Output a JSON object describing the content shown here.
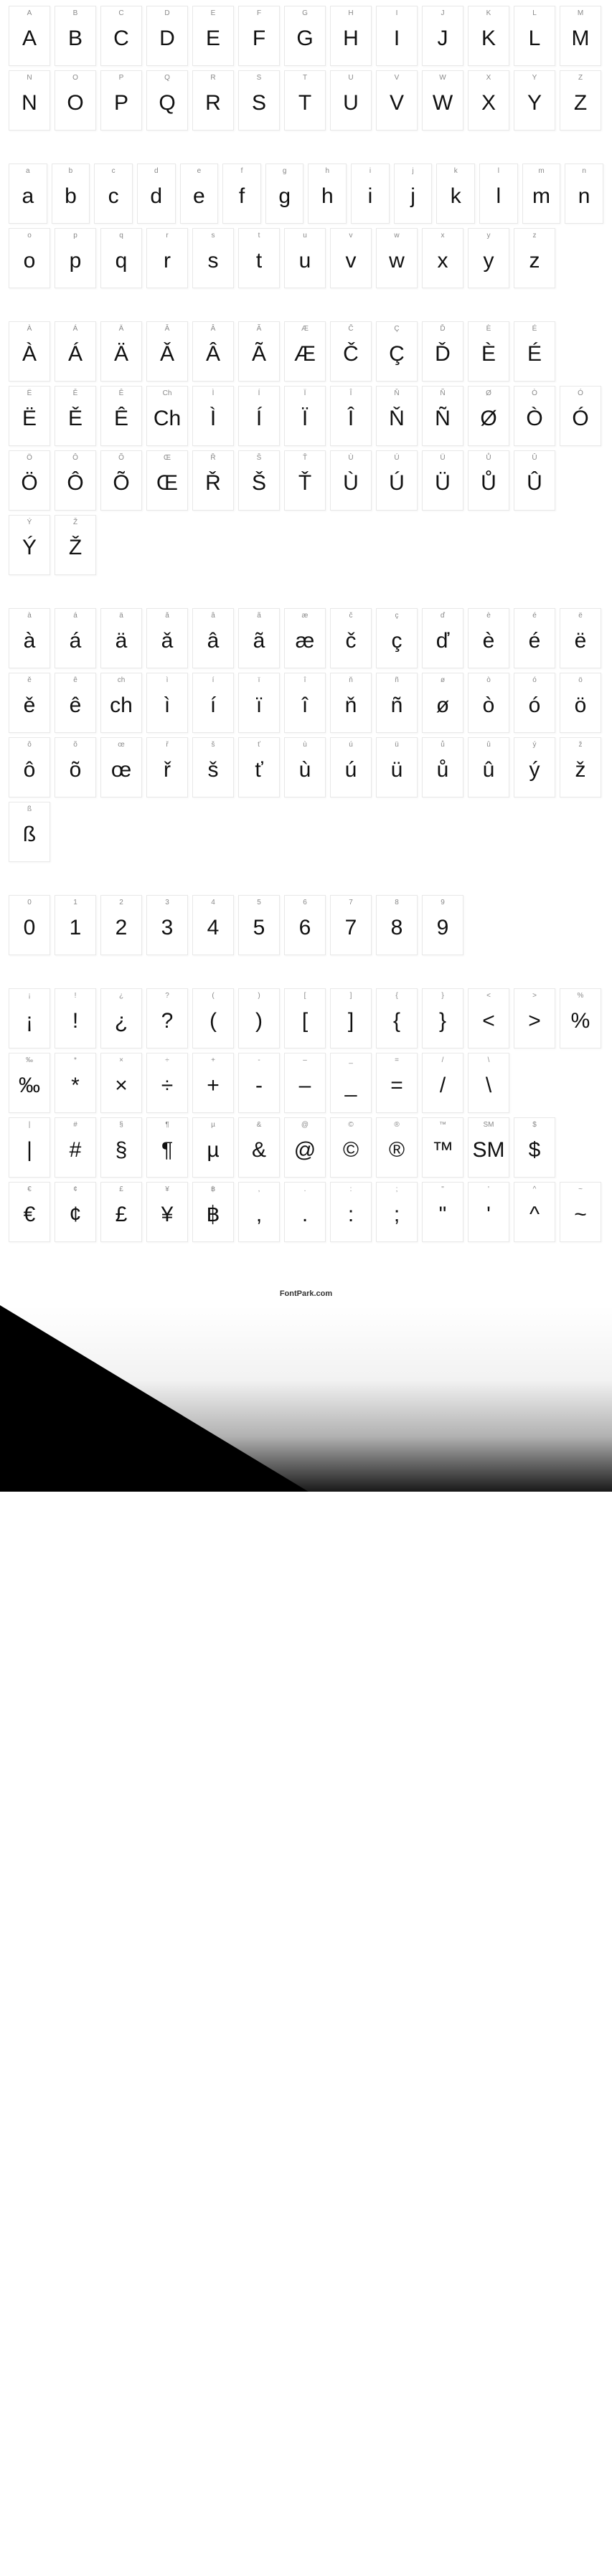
{
  "footer": "FontPark.com",
  "sections": [
    {
      "rows": [
        [
          {
            "label": "A",
            "glyph": "A"
          },
          {
            "label": "B",
            "glyph": "B"
          },
          {
            "label": "C",
            "glyph": "C"
          },
          {
            "label": "D",
            "glyph": "D"
          },
          {
            "label": "E",
            "glyph": "E"
          },
          {
            "label": "F",
            "glyph": "F"
          },
          {
            "label": "G",
            "glyph": "G"
          },
          {
            "label": "H",
            "glyph": "H"
          },
          {
            "label": "I",
            "glyph": "I"
          },
          {
            "label": "J",
            "glyph": "J"
          },
          {
            "label": "K",
            "glyph": "K"
          },
          {
            "label": "L",
            "glyph": "L"
          },
          {
            "label": "M",
            "glyph": "M"
          }
        ],
        [
          {
            "label": "N",
            "glyph": "N"
          },
          {
            "label": "O",
            "glyph": "O"
          },
          {
            "label": "P",
            "glyph": "P"
          },
          {
            "label": "Q",
            "glyph": "Q"
          },
          {
            "label": "R",
            "glyph": "R"
          },
          {
            "label": "S",
            "glyph": "S"
          },
          {
            "label": "T",
            "glyph": "T"
          },
          {
            "label": "U",
            "glyph": "U"
          },
          {
            "label": "V",
            "glyph": "V"
          },
          {
            "label": "W",
            "glyph": "W"
          },
          {
            "label": "X",
            "glyph": "X"
          },
          {
            "label": "Y",
            "glyph": "Y"
          },
          {
            "label": "Z",
            "glyph": "Z"
          }
        ]
      ]
    },
    {
      "rows": [
        [
          {
            "label": "a",
            "glyph": "a"
          },
          {
            "label": "b",
            "glyph": "b"
          },
          {
            "label": "c",
            "glyph": "c"
          },
          {
            "label": "d",
            "glyph": "d"
          },
          {
            "label": "e",
            "glyph": "e"
          },
          {
            "label": "f",
            "glyph": "f"
          },
          {
            "label": "g",
            "glyph": "g"
          },
          {
            "label": "h",
            "glyph": "h"
          },
          {
            "label": "i",
            "glyph": "i"
          },
          {
            "label": "j",
            "glyph": "j"
          },
          {
            "label": "k",
            "glyph": "k"
          },
          {
            "label": "l",
            "glyph": "l"
          },
          {
            "label": "m",
            "glyph": "m"
          },
          {
            "label": "n",
            "glyph": "n"
          }
        ],
        [
          {
            "label": "o",
            "glyph": "o"
          },
          {
            "label": "p",
            "glyph": "p"
          },
          {
            "label": "q",
            "glyph": "q"
          },
          {
            "label": "r",
            "glyph": "r"
          },
          {
            "label": "s",
            "glyph": "s"
          },
          {
            "label": "t",
            "glyph": "t"
          },
          {
            "label": "u",
            "glyph": "u"
          },
          {
            "label": "v",
            "glyph": "v"
          },
          {
            "label": "w",
            "glyph": "w"
          },
          {
            "label": "x",
            "glyph": "x"
          },
          {
            "label": "y",
            "glyph": "y"
          },
          {
            "label": "z",
            "glyph": "z"
          }
        ]
      ]
    },
    {
      "rows": [
        [
          {
            "label": "À",
            "glyph": "À"
          },
          {
            "label": "Á",
            "glyph": "Á"
          },
          {
            "label": "Ä",
            "glyph": "Ä"
          },
          {
            "label": "Ǎ",
            "glyph": "Ǎ"
          },
          {
            "label": "Â",
            "glyph": "Â"
          },
          {
            "label": "Ã",
            "glyph": "Ã"
          },
          {
            "label": "Æ",
            "glyph": "Æ"
          },
          {
            "label": "Č",
            "glyph": "Č"
          },
          {
            "label": "Ç",
            "glyph": "Ç"
          },
          {
            "label": "Ď",
            "glyph": "Ď"
          },
          {
            "label": "È",
            "glyph": "È"
          },
          {
            "label": "É",
            "glyph": "É"
          }
        ],
        [
          {
            "label": "Ë",
            "glyph": "Ë"
          },
          {
            "label": "Ě",
            "glyph": "Ě"
          },
          {
            "label": "Ê",
            "glyph": "Ê"
          },
          {
            "label": "Ch",
            "glyph": "Ch"
          },
          {
            "label": "Ì",
            "glyph": "Ì"
          },
          {
            "label": "Í",
            "glyph": "Í"
          },
          {
            "label": "Ï",
            "glyph": "Ï"
          },
          {
            "label": "Î",
            "glyph": "Î"
          },
          {
            "label": "Ň",
            "glyph": "Ň"
          },
          {
            "label": "Ñ",
            "glyph": "Ñ"
          },
          {
            "label": "Ø",
            "glyph": "Ø"
          },
          {
            "label": "Ò",
            "glyph": "Ò"
          },
          {
            "label": "Ó",
            "glyph": "Ó"
          }
        ],
        [
          {
            "label": "Ö",
            "glyph": "Ö"
          },
          {
            "label": "Ô",
            "glyph": "Ô"
          },
          {
            "label": "Õ",
            "glyph": "Õ"
          },
          {
            "label": "Œ",
            "glyph": "Œ"
          },
          {
            "label": "Ř",
            "glyph": "Ř"
          },
          {
            "label": "Š",
            "glyph": "Š"
          },
          {
            "label": "Ť",
            "glyph": "Ť"
          },
          {
            "label": "Ù",
            "glyph": "Ù"
          },
          {
            "label": "Ú",
            "glyph": "Ú"
          },
          {
            "label": "Ü",
            "glyph": "Ü"
          },
          {
            "label": "Ů",
            "glyph": "Ů"
          },
          {
            "label": "Û",
            "glyph": "Û"
          }
        ],
        [
          {
            "label": "Ý",
            "glyph": "Ý"
          },
          {
            "label": "Ž",
            "glyph": "Ž"
          }
        ]
      ]
    },
    {
      "rows": [
        [
          {
            "label": "à",
            "glyph": "à"
          },
          {
            "label": "á",
            "glyph": "á"
          },
          {
            "label": "ä",
            "glyph": "ä"
          },
          {
            "label": "ǎ",
            "glyph": "ǎ"
          },
          {
            "label": "â",
            "glyph": "â"
          },
          {
            "label": "ã",
            "glyph": "ã"
          },
          {
            "label": "æ",
            "glyph": "æ"
          },
          {
            "label": "č",
            "glyph": "č"
          },
          {
            "label": "ç",
            "glyph": "ç"
          },
          {
            "label": "ď",
            "glyph": "ď"
          },
          {
            "label": "è",
            "glyph": "è"
          },
          {
            "label": "é",
            "glyph": "é"
          },
          {
            "label": "ë",
            "glyph": "ë"
          }
        ],
        [
          {
            "label": "ě",
            "glyph": "ě"
          },
          {
            "label": "ê",
            "glyph": "ê"
          },
          {
            "label": "ch",
            "glyph": "ch"
          },
          {
            "label": "ì",
            "glyph": "ì"
          },
          {
            "label": "í",
            "glyph": "í"
          },
          {
            "label": "ï",
            "glyph": "ï"
          },
          {
            "label": "î",
            "glyph": "î"
          },
          {
            "label": "ň",
            "glyph": "ň"
          },
          {
            "label": "ñ",
            "glyph": "ñ"
          },
          {
            "label": "ø",
            "glyph": "ø"
          },
          {
            "label": "ò",
            "glyph": "ò"
          },
          {
            "label": "ó",
            "glyph": "ó"
          },
          {
            "label": "ö",
            "glyph": "ö"
          }
        ],
        [
          {
            "label": "ô",
            "glyph": "ô"
          },
          {
            "label": "õ",
            "glyph": "õ"
          },
          {
            "label": "œ",
            "glyph": "œ"
          },
          {
            "label": "ř",
            "glyph": "ř"
          },
          {
            "label": "š",
            "glyph": "š"
          },
          {
            "label": "ť",
            "glyph": "ť"
          },
          {
            "label": "ù",
            "glyph": "ù"
          },
          {
            "label": "ú",
            "glyph": "ú"
          },
          {
            "label": "ü",
            "glyph": "ü"
          },
          {
            "label": "ů",
            "glyph": "ů"
          },
          {
            "label": "û",
            "glyph": "û"
          },
          {
            "label": "ý",
            "glyph": "ý"
          },
          {
            "label": "ž",
            "glyph": "ž"
          }
        ],
        [
          {
            "label": "ß",
            "glyph": "ß"
          }
        ]
      ]
    },
    {
      "rows": [
        [
          {
            "label": "0",
            "glyph": "0"
          },
          {
            "label": "1",
            "glyph": "1"
          },
          {
            "label": "2",
            "glyph": "2"
          },
          {
            "label": "3",
            "glyph": "3"
          },
          {
            "label": "4",
            "glyph": "4"
          },
          {
            "label": "5",
            "glyph": "5"
          },
          {
            "label": "6",
            "glyph": "6"
          },
          {
            "label": "7",
            "glyph": "7"
          },
          {
            "label": "8",
            "glyph": "8"
          },
          {
            "label": "9",
            "glyph": "9"
          }
        ]
      ]
    },
    {
      "rows": [
        [
          {
            "label": "¡",
            "glyph": "¡"
          },
          {
            "label": "!",
            "glyph": "!"
          },
          {
            "label": "¿",
            "glyph": "¿"
          },
          {
            "label": "?",
            "glyph": "?"
          },
          {
            "label": "(",
            "glyph": "("
          },
          {
            "label": ")",
            "glyph": ")"
          },
          {
            "label": "[",
            "glyph": "["
          },
          {
            "label": "]",
            "glyph": "]"
          },
          {
            "label": "{",
            "glyph": "{"
          },
          {
            "label": "}",
            "glyph": "}"
          },
          {
            "label": "<",
            "glyph": "<"
          },
          {
            "label": ">",
            "glyph": ">"
          },
          {
            "label": "%",
            "glyph": "%"
          }
        ],
        [
          {
            "label": "‰",
            "glyph": "‰"
          },
          {
            "label": "*",
            "glyph": "*"
          },
          {
            "label": "×",
            "glyph": "×"
          },
          {
            "label": "÷",
            "glyph": "÷"
          },
          {
            "label": "+",
            "glyph": "+"
          },
          {
            "label": "-",
            "glyph": "-"
          },
          {
            "label": "–",
            "glyph": "–"
          },
          {
            "label": "_",
            "glyph": "_"
          },
          {
            "label": "=",
            "glyph": "="
          },
          {
            "label": "/",
            "glyph": "/"
          },
          {
            "label": "\\",
            "glyph": "\\"
          }
        ],
        [
          {
            "label": "|",
            "glyph": "|"
          },
          {
            "label": "#",
            "glyph": "#"
          },
          {
            "label": "§",
            "glyph": "§"
          },
          {
            "label": "¶",
            "glyph": "¶"
          },
          {
            "label": "µ",
            "glyph": "µ"
          },
          {
            "label": "&",
            "glyph": "&"
          },
          {
            "label": "@",
            "glyph": "@"
          },
          {
            "label": "©",
            "glyph": "©"
          },
          {
            "label": "®",
            "glyph": "®"
          },
          {
            "label": "™",
            "glyph": "™"
          },
          {
            "label": "SM",
            "glyph": "SM"
          },
          {
            "label": "$",
            "glyph": "$"
          }
        ],
        [
          {
            "label": "€",
            "glyph": "€"
          },
          {
            "label": "¢",
            "glyph": "¢"
          },
          {
            "label": "£",
            "glyph": "£"
          },
          {
            "label": "¥",
            "glyph": "¥"
          },
          {
            "label": "฿",
            "glyph": "฿"
          },
          {
            "label": ",",
            "glyph": ","
          },
          {
            "label": ".",
            "glyph": "."
          },
          {
            "label": ":",
            "glyph": ":"
          },
          {
            "label": ";",
            "glyph": ";"
          },
          {
            "label": "\"",
            "glyph": "\""
          },
          {
            "label": "'",
            "glyph": "'"
          },
          {
            "label": "^",
            "glyph": "^"
          },
          {
            "label": "~",
            "glyph": "~"
          }
        ]
      ]
    }
  ]
}
